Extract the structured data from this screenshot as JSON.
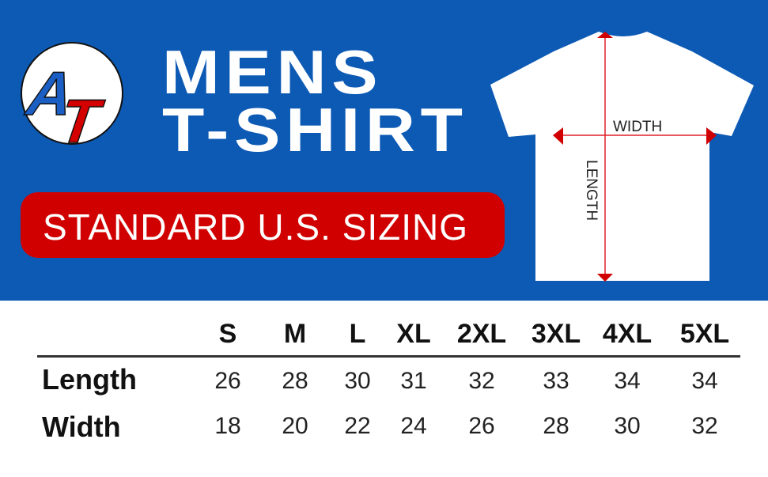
{
  "logo": {
    "text": "AT",
    "colors": {
      "A": "#1b5fc4",
      "T": "#d40000"
    }
  },
  "title": {
    "line1": "MENS",
    "line2": "T-SHIRT"
  },
  "subtitle": "STANDARD U.S. SIZING",
  "diagram": {
    "width_label": "WIDTH",
    "length_label": "LENGTH"
  },
  "colors": {
    "banner": "#0d5ab5",
    "accent": "#d10000"
  },
  "table": {
    "sizes": [
      "S",
      "M",
      "L",
      "XL",
      "2XL",
      "3XL",
      "4XL",
      "5XL"
    ],
    "rows": [
      {
        "label": "Length",
        "values": [
          "26",
          "28",
          "30",
          "31",
          "32",
          "33",
          "34",
          "34"
        ]
      },
      {
        "label": "Width",
        "values": [
          "18",
          "20",
          "22",
          "24",
          "26",
          "28",
          "30",
          "32"
        ]
      }
    ]
  }
}
